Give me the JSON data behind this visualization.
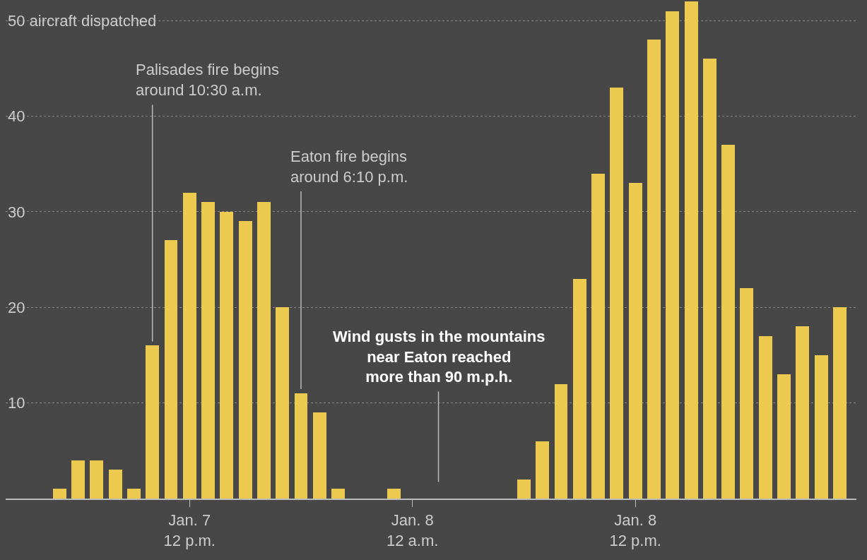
{
  "chart_data": {
    "type": "bar",
    "categories": [
      null,
      null,
      null,
      null,
      null,
      null,
      null,
      "Jan. 7\n12 p.m.",
      null,
      null,
      null,
      null,
      null,
      null,
      null,
      null,
      null,
      null,
      null,
      "Jan. 8\n12 a.m.",
      null,
      null,
      null,
      null,
      null,
      null,
      null,
      null,
      null,
      null,
      null,
      "Jan. 8\n12 p.m.",
      null,
      null,
      null,
      null,
      null,
      null,
      null,
      null,
      null,
      null,
      null
    ],
    "values": [
      1,
      4,
      4,
      3,
      1,
      16,
      27,
      32,
      31,
      30,
      29,
      31,
      20,
      11,
      9,
      1,
      null,
      null,
      1,
      null,
      null,
      null,
      null,
      null,
      null,
      2,
      6,
      12,
      23,
      34,
      43,
      33,
      48,
      51,
      52,
      46,
      37,
      22,
      17,
      13,
      18,
      15,
      20
    ],
    "color": "#ecc94f",
    "ylim": [
      0,
      52
    ],
    "yticks": [
      10,
      20,
      30,
      40,
      {
        "value": 50,
        "label": "50 aircraft dispatched"
      }
    ],
    "grid": "y",
    "annotations": [
      "Palisades fire begins\naround 10:30 a.m.",
      "Eaton fire begins\naround 6:10 p.m.",
      "Wind gusts in the mountains\nnear Eaton reached\nmore than 90 m.p.h."
    ]
  }
}
